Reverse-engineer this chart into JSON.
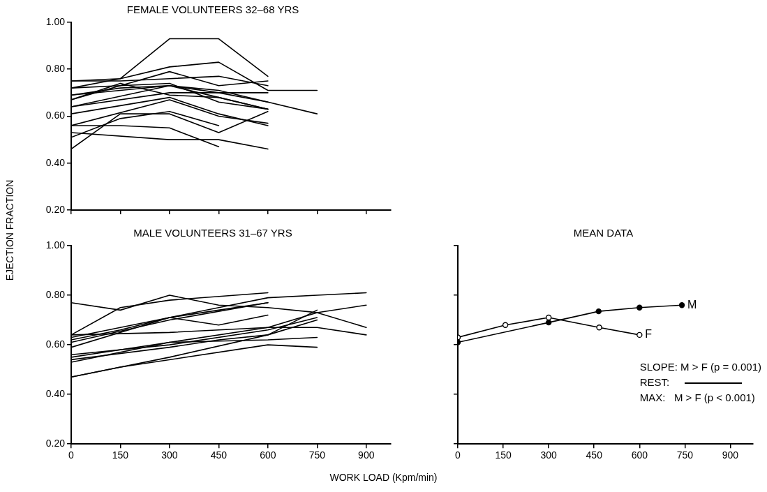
{
  "chart_data": [
    {
      "type": "line",
      "title": "FEMALE VOLUNTEERS 32–68 YRS",
      "xlim": [
        0,
        975
      ],
      "xticks": [
        0,
        150,
        300,
        450,
        600,
        750,
        900
      ],
      "ylim": [
        0.2,
        1.0
      ],
      "yticks": [
        {
          "value": 0.2,
          "label": "0.20"
        },
        {
          "value": 0.4,
          "label": "0.40"
        },
        {
          "value": 0.6,
          "label": "0.60"
        },
        {
          "value": 0.8,
          "label": "0.80"
        },
        {
          "value": 1.0,
          "label": "1.00"
        }
      ],
      "tick_labels": "y",
      "grid": false,
      "legend": false,
      "marker": "none",
      "line_style": "solid",
      "series": [
        {
          "color": "#000000",
          "x": [
            0,
            150,
            300,
            450,
            600
          ],
          "values": [
            0.75,
            0.76,
            0.93,
            0.93,
            0.77
          ]
        },
        {
          "color": "#000000",
          "x": [
            0,
            150,
            300,
            450,
            600,
            750
          ],
          "values": [
            0.72,
            0.76,
            0.81,
            0.83,
            0.71,
            0.71
          ]
        },
        {
          "color": "#000000",
          "x": [
            0,
            150,
            300,
            450,
            600
          ],
          "values": [
            0.67,
            0.73,
            0.79,
            0.73,
            0.75
          ]
        },
        {
          "color": "#000000",
          "x": [
            0,
            150,
            300,
            450,
            600
          ],
          "values": [
            0.75,
            0.75,
            0.76,
            0.77,
            0.73
          ]
        },
        {
          "color": "#000000",
          "x": [
            0,
            150,
            300,
            450,
            600,
            750
          ],
          "values": [
            0.69,
            0.71,
            0.73,
            0.7,
            0.66,
            0.61
          ]
        },
        {
          "color": "#000000",
          "x": [
            0,
            150,
            300,
            450,
            600
          ],
          "values": [
            0.72,
            0.73,
            0.74,
            0.66,
            0.63
          ]
        },
        {
          "color": "#000000",
          "x": [
            0,
            150,
            300,
            450,
            600
          ],
          "values": [
            0.46,
            0.61,
            0.61,
            0.53,
            0.62
          ]
        },
        {
          "color": "#000000",
          "x": [
            0,
            150,
            300,
            450
          ],
          "values": [
            0.56,
            0.56,
            0.55,
            0.47
          ]
        },
        {
          "color": "#000000",
          "x": [
            0,
            300,
            450,
            600
          ],
          "values": [
            0.53,
            0.5,
            0.5,
            0.46
          ]
        },
        {
          "color": "#000000",
          "x": [
            0,
            150,
            300,
            450
          ],
          "values": [
            0.51,
            0.59,
            0.62,
            0.56
          ]
        },
        {
          "color": "#000000",
          "x": [
            0,
            300,
            450,
            600
          ],
          "values": [
            0.56,
            0.67,
            0.6,
            0.57
          ]
        },
        {
          "color": "#000000",
          "x": [
            0,
            300,
            450,
            600
          ],
          "values": [
            0.61,
            0.68,
            0.61,
            0.56
          ]
        },
        {
          "color": "#000000",
          "x": [
            0,
            300,
            450,
            600
          ],
          "values": [
            0.64,
            0.73,
            0.68,
            0.63
          ]
        },
        {
          "color": "#000000",
          "x": [
            0,
            300,
            450,
            600
          ],
          "values": [
            0.64,
            0.7,
            0.7,
            0.7
          ]
        },
        {
          "color": "#000000",
          "x": [
            0,
            150,
            300,
            450,
            600
          ],
          "values": [
            0.69,
            0.72,
            0.73,
            0.71,
            0.66
          ]
        },
        {
          "color": "#000000",
          "x": [
            0,
            150,
            300,
            450,
            600
          ],
          "values": [
            0.67,
            0.74,
            0.69,
            0.68,
            0.63
          ]
        }
      ]
    },
    {
      "type": "line",
      "title": "MALE VOLUNTEERS 31–67 YRS",
      "xlabel": "WORK LOAD (Kpm/min)",
      "ylabel": "EJECTION FRACTION",
      "xlim": [
        0,
        975
      ],
      "xticks": [
        0,
        150,
        300,
        450,
        600,
        750,
        900
      ],
      "ylim": [
        0.2,
        1.0
      ],
      "yticks": [
        {
          "value": 0.2,
          "label": "0.20"
        },
        {
          "value": 0.4,
          "label": "0.40"
        },
        {
          "value": 0.6,
          "label": "0.60"
        },
        {
          "value": 0.8,
          "label": "0.80"
        },
        {
          "value": 1.0,
          "label": "1.00"
        }
      ],
      "grid": false,
      "legend": false,
      "marker": "none",
      "line_style": "solid",
      "series": [
        {
          "color": "#000000",
          "x": [
            0,
            150,
            300,
            450,
            600,
            750,
            900
          ],
          "values": [
            0.77,
            0.74,
            0.8,
            0.76,
            0.75,
            0.73,
            0.67
          ]
        },
        {
          "color": "#000000",
          "x": [
            0,
            150,
            300,
            600
          ],
          "values": [
            0.64,
            0.75,
            0.78,
            0.81
          ]
        },
        {
          "color": "#000000",
          "x": [
            0,
            150,
            300,
            450,
            600,
            750,
            900
          ],
          "values": [
            0.63,
            0.67,
            0.71,
            0.75,
            0.79,
            0.8,
            0.81
          ]
        },
        {
          "color": "#000000",
          "x": [
            0,
            300,
            450,
            600
          ],
          "values": [
            0.59,
            0.71,
            0.68,
            0.72
          ]
        },
        {
          "color": "#000000",
          "x": [
            0,
            150,
            300,
            450,
            600
          ],
          "values": [
            0.62,
            0.66,
            0.71,
            0.74,
            0.77
          ]
        },
        {
          "color": "#000000",
          "x": [
            0,
            300,
            600,
            750,
            900
          ],
          "values": [
            0.64,
            0.65,
            0.67,
            0.67,
            0.64
          ]
        },
        {
          "color": "#000000",
          "x": [
            0,
            300,
            600,
            750,
            900
          ],
          "values": [
            0.53,
            0.61,
            0.67,
            0.73,
            0.76
          ]
        },
        {
          "color": "#000000",
          "x": [
            0,
            300,
            600,
            750
          ],
          "values": [
            0.47,
            0.55,
            0.64,
            0.74
          ]
        },
        {
          "color": "#000000",
          "x": [
            0,
            150,
            600,
            750
          ],
          "values": [
            0.47,
            0.51,
            0.6,
            0.59
          ]
        },
        {
          "color": "#000000",
          "x": [
            0,
            300,
            600,
            750
          ],
          "values": [
            0.55,
            0.61,
            0.62,
            0.63
          ]
        },
        {
          "color": "#000000",
          "x": [
            0,
            300,
            600,
            750
          ],
          "values": [
            0.56,
            0.6,
            0.66,
            0.71
          ]
        },
        {
          "color": "#000000",
          "x": [
            0,
            300,
            450,
            600,
            750
          ],
          "values": [
            0.54,
            0.59,
            0.62,
            0.64,
            0.7
          ]
        },
        {
          "color": "#000000",
          "x": [
            0,
            300,
            600
          ],
          "values": [
            0.61,
            0.7,
            0.77
          ]
        }
      ]
    },
    {
      "type": "line",
      "title": "MEAN DATA",
      "xlim": [
        0,
        975
      ],
      "xticks": [
        0,
        150,
        300,
        450,
        600,
        750,
        900
      ],
      "ylim": [
        0.2,
        1.0
      ],
      "yticks": [
        0.2,
        0.4,
        0.6,
        0.8,
        1.0
      ],
      "tick_labels": "x",
      "grid": false,
      "legend": false,
      "marker": "circle",
      "line_style": "solid",
      "annotations": [
        "SLOPE: M > F (p = 0.001)",
        "REST:",
        "MAX:   M > F (p < 0.001)"
      ],
      "series": [
        {
          "name": "M",
          "color": "#000000",
          "x": [
            0,
            300,
            465,
            600,
            740
          ],
          "values": [
            0.61,
            0.69,
            0.735,
            0.75,
            0.76
          ]
        },
        {
          "name": "F",
          "color": "#000000",
          "x": [
            0,
            157,
            300,
            467,
            600
          ],
          "values": [
            0.63,
            0.68,
            0.71,
            0.67,
            0.64
          ]
        }
      ]
    }
  ]
}
